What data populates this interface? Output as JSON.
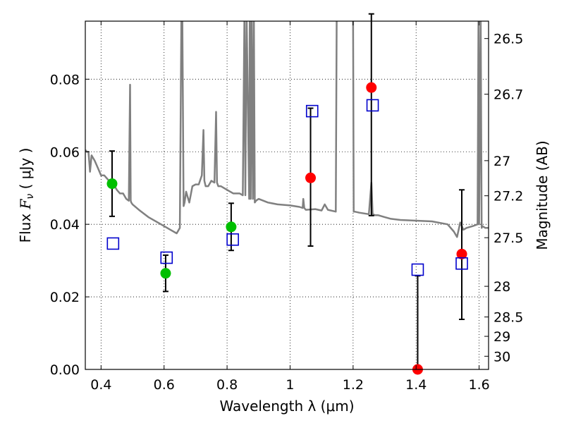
{
  "chart_data": {
    "type": "scatter",
    "xlabel": "Wavelength  λ (μm)",
    "ylabel_prefix": "Flux  ",
    "ylabel_symbol": "F",
    "ylabel_sub": "ν",
    "ylabel_suffix": "  ( μJy )",
    "y2label": "Magnitude (AB)",
    "xlim": [
      0.35,
      1.63
    ],
    "ylim": [
      0.0,
      0.096
    ],
    "xticks": [
      0.4,
      0.6,
      0.8,
      1.0,
      1.2,
      1.4,
      1.6
    ],
    "xtick_labels": [
      "0.4",
      "0.6",
      "0.8",
      "1",
      "1.2",
      "1.4",
      "1.6"
    ],
    "yticks": [
      0.0,
      0.02,
      0.04,
      0.06,
      0.08
    ],
    "ytick_labels": [
      "0.00",
      "0.02",
      "0.04",
      "0.06",
      "0.08"
    ],
    "mag_ticks": [
      26.5,
      26.7,
      27,
      27.2,
      27.5,
      28,
      28.5,
      29,
      30
    ],
    "mag_tick_labels": [
      "26.5",
      "26.7",
      "27",
      "27.2",
      "27.5",
      "28",
      "28.5",
      "29",
      "30"
    ],
    "grid": true,
    "colors": {
      "model": "#808080",
      "green": "#00bf00",
      "red": "#ff0000",
      "square": "#0000cc",
      "errorbar": "#000000"
    },
    "series": [
      {
        "name": "model spectrum",
        "kind": "line",
        "x": [
          0.35,
          0.355,
          0.36,
          0.365,
          0.37,
          0.38,
          0.39,
          0.4,
          0.41,
          0.42,
          0.43,
          0.44,
          0.45,
          0.46,
          0.47,
          0.48,
          0.488,
          0.492,
          0.494,
          0.496,
          0.5,
          0.52,
          0.55,
          0.58,
          0.6,
          0.62,
          0.64,
          0.65,
          0.655,
          0.658,
          0.662,
          0.665,
          0.67,
          0.68,
          0.69,
          0.7,
          0.71,
          0.72,
          0.725,
          0.728,
          0.732,
          0.74,
          0.75,
          0.76,
          0.765,
          0.768,
          0.772,
          0.78,
          0.8,
          0.82,
          0.84,
          0.85,
          0.855,
          0.858,
          0.862,
          0.87,
          0.872,
          0.875,
          0.878,
          0.882,
          0.885,
          0.888,
          0.892,
          0.9,
          0.93,
          0.96,
          1.0,
          1.03,
          1.04,
          1.042,
          1.045,
          1.05,
          1.08,
          1.1,
          1.11,
          1.12,
          1.145,
          1.148,
          1.15,
          1.2,
          1.202,
          1.205,
          1.22,
          1.25,
          1.258,
          1.262,
          1.27,
          1.28,
          1.3,
          1.32,
          1.35,
          1.4,
          1.45,
          1.5,
          1.52,
          1.53,
          1.54,
          1.55,
          1.56,
          1.58,
          1.595,
          1.598,
          1.6,
          1.605,
          1.608,
          1.61,
          1.62,
          1.63
        ],
        "y": [
          0.0605,
          0.06,
          0.06,
          0.0545,
          0.059,
          0.0575,
          0.0555,
          0.0535,
          0.0535,
          0.0525,
          0.0515,
          0.051,
          0.0495,
          0.0485,
          0.0485,
          0.047,
          0.0465,
          0.0785,
          0.0465,
          0.046,
          0.0455,
          0.044,
          0.042,
          0.0405,
          0.0395,
          0.0385,
          0.0375,
          0.039,
          0.098,
          0.098,
          0.045,
          0.046,
          0.049,
          0.046,
          0.0505,
          0.051,
          0.051,
          0.0535,
          0.066,
          0.052,
          0.0505,
          0.0505,
          0.052,
          0.0515,
          0.071,
          0.0515,
          0.0505,
          0.0505,
          0.0495,
          0.0485,
          0.0485,
          0.048,
          0.098,
          0.048,
          0.098,
          0.047,
          0.098,
          0.047,
          0.098,
          0.047,
          0.098,
          0.046,
          0.0465,
          0.047,
          0.046,
          0.0455,
          0.0452,
          0.0448,
          0.0445,
          0.047,
          0.0445,
          0.044,
          0.0442,
          0.0438,
          0.0455,
          0.044,
          0.0435,
          0.098,
          0.098,
          0.098,
          0.0435,
          0.0435,
          0.0432,
          0.0428,
          0.0515,
          0.0428,
          0.0425,
          0.0425,
          0.042,
          0.0415,
          0.0412,
          0.041,
          0.0408,
          0.04,
          0.038,
          0.0365,
          0.0405,
          0.0385,
          0.039,
          0.0395,
          0.04,
          0.098,
          0.04,
          0.098,
          0.039,
          0.0395,
          0.039,
          0.039
        ]
      },
      {
        "name": "green points",
        "kind": "points",
        "x": [
          0.435,
          0.605,
          0.813
        ],
        "y": [
          0.0512,
          0.0265,
          0.0393
        ],
        "err_low": [
          0.009,
          0.005,
          0.0065
        ],
        "err_high": [
          0.009,
          0.005,
          0.0065
        ]
      },
      {
        "name": "red points",
        "kind": "points",
        "x": [
          1.065,
          1.258,
          1.405,
          1.545
        ],
        "y": [
          0.0528,
          0.0777,
          0.0,
          0.0318
        ],
        "err_low": [
          0.0188,
          0.0353,
          0.0,
          0.018
        ],
        "err_high": [
          0.0192,
          0.0203,
          0.0258,
          0.0177
        ]
      },
      {
        "name": "model magnitudes",
        "kind": "squares",
        "x": [
          0.438,
          0.608,
          0.818,
          1.07,
          1.262,
          1.405,
          1.545
        ],
        "y": [
          0.0347,
          0.0308,
          0.0358,
          0.0712,
          0.0728,
          0.0275,
          0.0292
        ]
      }
    ]
  }
}
